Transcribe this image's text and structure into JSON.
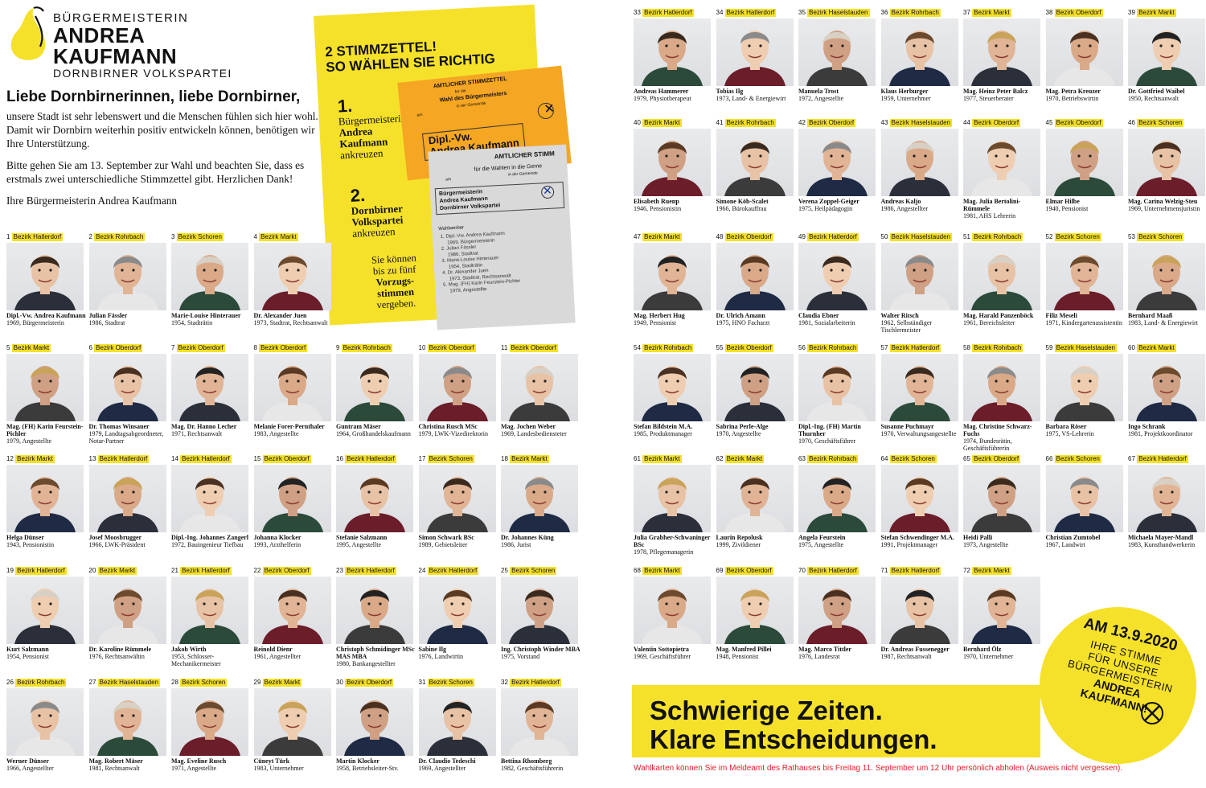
{
  "header": {
    "line1": "BÜRGERMEISTERIN",
    "line2": "ANDREA KAUFMANN",
    "line3": "DORNBIRNER VOLKSPARTEI"
  },
  "intro": {
    "heading": "Liebe Dornbirnerinnen, liebe Dornbirner,",
    "p1": "unsere Stadt ist sehr lebenswert und die Menschen fühlen sich hier wohl. Damit wir Dornbirn weiterhin positiv entwickeln können, benötigen wir Ihre Unterstützung.",
    "p2": "Bitte gehen Sie am 13. September zur Wahl und beachten Sie, dass es erstmals zwei unterschiedliche Stimmzettel gibt. Herzlichen Dank!",
    "p3": "Ihre Bürgermeisterin Andrea Kaufmann"
  },
  "ballot": {
    "title1": "2 STIMMZETTEL!",
    "title2": "SO WÄHLEN SIE RICHTIG",
    "step1_num": "1.",
    "step1_l1": "Bürgermeisterin",
    "step1_l2": "Andrea",
    "step1_l3": "Kaufmann",
    "step1_l4": "ankreuzen",
    "step2_num": "2.",
    "step2_l1": "Dornbirner",
    "step2_l2": "Volkspartei",
    "step2_l3": "ankreuzen",
    "note_l1": "Sie können",
    "note_l2": "bis zu fünf",
    "note_l3": "Vorzugs-",
    "note_l4": "stimmen",
    "note_l5": "vergeben.",
    "orange_title": "AMTLICHER STIMMZETTEL",
    "orange_sub1": "für die",
    "orange_sub2": "Wahl des Bürgermeisters",
    "orange_sub3": "in der Gemeinde",
    "orange_am": "am",
    "orange_name1": "Dipl.-Vw.",
    "orange_name2": "Andrea Kaufmann",
    "grey_title": "AMTLICHER STIMM",
    "grey_sub": "für die Wahlen in die Geme",
    "grey_sub2": "in der Gemeinde",
    "grey_am": "am",
    "grey_party1": "Bürgermeisterin",
    "grey_party2": "Andrea Kaufmann",
    "grey_party3": "Dornbirner Volkspartei",
    "grey_wb": "Wahlwerber",
    "grey_list": [
      "1. Dipl.-Vw. Andrea Kaufmann",
      "1969, Bürgermeisterin",
      "2. Julian Fässler",
      "1986, Stadtrat",
      "3. Marie-Louise Hinterauer",
      "1954, Stadträtin",
      "4. Dr. Alexander Juen",
      "1973, Stadtrat, Rechtsanwalt",
      "5. Mag. (FH) Karin Feurstein-Pichler",
      "1979, Angestellte"
    ]
  },
  "candidates": [
    {
      "num": "1",
      "district": "Bezirk Hatlerdorf",
      "name": "Dipl.-Vw. Andrea Kaufmann",
      "info": "1969, Bürgermeisterin"
    },
    {
      "num": "2",
      "district": "Bezirk Rohrbach",
      "name": "Julian Fässler",
      "info": "1986, Stadtrat"
    },
    {
      "num": "3",
      "district": "Bezirk Schoren",
      "name": "Marie-Louise Hinterauer",
      "info": "1954, Stadträtin"
    },
    {
      "num": "4",
      "district": "Bezirk Markt",
      "name": "Dr. Alexander Juen",
      "info": "1973, Stadtrat, Rechtsanwalt"
    },
    {
      "num": "5",
      "district": "Bezirk Markt",
      "name": "Mag. (FH) Karin Feurstein-Pichler",
      "info": "1979, Angestellte"
    },
    {
      "num": "6",
      "district": "Bezirk Oberdorf",
      "name": "Dr. Thomas Winsauer",
      "info": "1979, Landtagsabgeordneter, Notar-Partner"
    },
    {
      "num": "7",
      "district": "Bezirk Oberdorf",
      "name": "Mag. Dr. Hanno Lecher",
      "info": "1971, Rechtsanwalt"
    },
    {
      "num": "8",
      "district": "Bezirk Oberdorf",
      "name": "Melanie Forer-Pernthaler",
      "info": "1983, Angestellte"
    },
    {
      "num": "9",
      "district": "Bezirk Rohrbach",
      "name": "Guntram Mäser",
      "info": "1964, Großhandelskaufmann"
    },
    {
      "num": "10",
      "district": "Bezirk Oberdorf",
      "name": "Christina Rusch MSc",
      "info": "1979, LWK-Vizedirektorin"
    },
    {
      "num": "11",
      "district": "Bezirk Oberdorf",
      "name": "Mag. Jochen Weber",
      "info": "1969, Landesbediensteter"
    },
    {
      "num": "12",
      "district": "Bezirk Markt",
      "name": "Helga Dünser",
      "info": "1943, Pensionistin"
    },
    {
      "num": "13",
      "district": "Bezirk Hatlerdorf",
      "name": "Josef Moosbrugger",
      "info": "1966, LWK-Präsident"
    },
    {
      "num": "14",
      "district": "Bezirk Hatlerdorf",
      "name": "Dipl.-Ing. Johannes Zangerl",
      "info": "1972, Bauingenieur Tiefbau"
    },
    {
      "num": "15",
      "district": "Bezirk Oberdorf",
      "name": "Johanna Klocker",
      "info": "1993, Arzthelferin"
    },
    {
      "num": "16",
      "district": "Bezirk Hatlerdorf",
      "name": "Stefanie Salzmann",
      "info": "1995, Angestellte"
    },
    {
      "num": "17",
      "district": "Bezirk Schoren",
      "name": "Simon Schwark BSc",
      "info": "1989, Gebietsleiter"
    },
    {
      "num": "18",
      "district": "Bezirk Markt",
      "name": "Dr. Johannes Küng",
      "info": "1986, Jurist"
    },
    {
      "num": "19",
      "district": "Bezirk Hatlerdorf",
      "name": "Kurt Salzmann",
      "info": "1954, Pensionist"
    },
    {
      "num": "20",
      "district": "Bezirk Markt",
      "name": "Dr. Karoline Rümmele",
      "info": "1976, Rechtsanwältin"
    },
    {
      "num": "21",
      "district": "Bezirk Hatlerdorf",
      "name": "Jakob Wirth",
      "info": "1953, Schlosser-Mechanikermeister"
    },
    {
      "num": "22",
      "district": "Bezirk Oberdorf",
      "name": "Reinold Dienr",
      "info": "1961, Angestellter"
    },
    {
      "num": "23",
      "district": "Bezirk Hatlerdorf",
      "name": "Christoph Schmidinger MSc MAS MBA",
      "info": "1980, Bankangestellter"
    },
    {
      "num": "24",
      "district": "Bezirk Hatlerdorf",
      "name": "Sabine Ilg",
      "info": "1976, Landwirtin"
    },
    {
      "num": "25",
      "district": "Bezirk Schoren",
      "name": "Ing. Christoph Winder MBA",
      "info": "1975, Vorstand"
    },
    {
      "num": "26",
      "district": "Bezirk Rohrbach",
      "name": "Werner Dünser",
      "info": "1966, Angestellter"
    },
    {
      "num": "27",
      "district": "Bezirk Haselstauden",
      "name": "Mag. Robert Mäser",
      "info": "1981, Rechtsanwalt"
    },
    {
      "num": "28",
      "district": "Bezirk Schoren",
      "name": "Mag. Eveline Rusch",
      "info": "1971, Angestellte"
    },
    {
      "num": "29",
      "district": "Bezirk Markt",
      "name": "Cüneyt Türk",
      "info": "1983, Unternehmer"
    },
    {
      "num": "30",
      "district": "Bezirk Oberdorf",
      "name": "Martin Klocker",
      "info": "1958, Betriebsleiter-Stv."
    },
    {
      "num": "31",
      "district": "Bezirk Schoren",
      "name": "Dr. Claudio Tedeschi",
      "info": "1969, Angestellter"
    },
    {
      "num": "32",
      "district": "Bezirk Hatlerdorf",
      "name": "Bettina Rhomberg",
      "info": "1982, Geschäftsführerin"
    },
    {
      "num": "33",
      "district": "Bezirk Hatlerdorf",
      "name": "Andreas Hammerer",
      "info": "1979, Physiotherapeut"
    },
    {
      "num": "34",
      "district": "Bezirk Hatlerdorf",
      "name": "Tobias Ilg",
      "info": "1973, Land- & Energiewirt"
    },
    {
      "num": "35",
      "district": "Bezirk Haselstauden",
      "name": "Manuela Trost",
      "info": "1972, Angestellte"
    },
    {
      "num": "36",
      "district": "Bezirk Rohrbach",
      "name": "Klaus Herburger",
      "info": "1959, Unternehmer"
    },
    {
      "num": "37",
      "district": "Bezirk Markt",
      "name": "Mag. Heinz Peter Balcz",
      "info": "1977, Steuerberater"
    },
    {
      "num": "38",
      "district": "Bezirk Oberdorf",
      "name": "Mag. Petra Kreuzer",
      "info": "1970, Betriebswirtin"
    },
    {
      "num": "39",
      "district": "Bezirk Markt",
      "name": "Dr. Gottfried Waibel",
      "info": "1950, Rechtsanwalt"
    },
    {
      "num": "40",
      "district": "Bezirk Markt",
      "name": "Elisabeth Rueпp",
      "info": "1946, Pensionistin"
    },
    {
      "num": "41",
      "district": "Bezirk Rohrbach",
      "name": "Simone Köb-Scalet",
      "info": "1966, Bürokauffrau"
    },
    {
      "num": "42",
      "district": "Bezirk Oberdorf",
      "name": "Verena Zoppel-Geiger",
      "info": "1975, Heilpädagogin"
    },
    {
      "num": "43",
      "district": "Bezirk Haselstauden",
      "name": "Andreas Kaljo",
      "info": "1986, Angestellter"
    },
    {
      "num": "44",
      "district": "Bezirk Oberdorf",
      "name": "Mag. Julia Bertolini-Rümmele",
      "info": "1981, AHS Lehrerin"
    },
    {
      "num": "45",
      "district": "Bezirk Oberdorf",
      "name": "Elmar Hilbe",
      "info": "1940, Pensionist"
    },
    {
      "num": "46",
      "district": "Bezirk Schoren",
      "name": "Mag. Carina Welzig-Steu",
      "info": "1969, Unternehmensjuristin"
    },
    {
      "num": "47",
      "district": "Bezirk Markt",
      "name": "Mag. Herbert Hug",
      "info": "1949, Pensionist"
    },
    {
      "num": "48",
      "district": "Bezirk Oberdorf",
      "name": "Dr. Ulrich Amann",
      "info": "1975, HNO Facharzt"
    },
    {
      "num": "49",
      "district": "Bezirk Hatlerdorf",
      "name": "Claudia Ebner",
      "info": "1981, Sozialarbeiterin"
    },
    {
      "num": "50",
      "district": "Bezirk Haselstauden",
      "name": "Walter Ritsch",
      "info": "1962, Selbständiger Tischlermeister"
    },
    {
      "num": "51",
      "district": "Bezirk Rohrbach",
      "name": "Mag. Harald Panzenböck",
      "info": "1961, Bereichsleiter"
    },
    {
      "num": "52",
      "district": "Bezirk Schoren",
      "name": "Filiz Meseli",
      "info": "1971, Kindergartenassistentin"
    },
    {
      "num": "53",
      "district": "Bezirk Schoren",
      "name": "Bernhard Maaß",
      "info": "1983, Land- & Energiewirt"
    },
    {
      "num": "54",
      "district": "Bezirk Rohrbach",
      "name": "Stefan Bildstein M.A.",
      "info": "1985, Produktmanager"
    },
    {
      "num": "55",
      "district": "Bezirk Oberdorf",
      "name": "Sabrina Perle-Alge",
      "info": "1970, Angestellte"
    },
    {
      "num": "56",
      "district": "Bezirk Rohrbach",
      "name": "Dipl.-Ing. (FH) Martin Thurnher",
      "info": "1970, Geschäftsführer"
    },
    {
      "num": "57",
      "district": "Bezirk Hatlerdorf",
      "name": "Susanne Puchmayr",
      "info": "1970, Verwaltungsangestellte"
    },
    {
      "num": "58",
      "district": "Bezirk Rohrbach",
      "name": "Mag. Christine Schwarz-Fuchs",
      "info": "1974, Bundesrätin, Geschäftsführerin"
    },
    {
      "num": "59",
      "district": "Bezirk Haselstauden",
      "name": "Barbara Röser",
      "info": "1975, VS-Lehrerin"
    },
    {
      "num": "60",
      "district": "Bezirk Markt",
      "name": "Ingo Schrank",
      "info": "1981, Projektkoordinator"
    },
    {
      "num": "61",
      "district": "Bezirk Markt",
      "name": "Julia Grabher-Schwaninger BSc",
      "info": "1978, Pflegemanagerin"
    },
    {
      "num": "62",
      "district": "Bezirk Markt",
      "name": "Laurin Repolusk",
      "info": "1999, Zivildiener"
    },
    {
      "num": "63",
      "district": "Bezirk Rohrbach",
      "name": "Angela Feurstein",
      "info": "1975, Angestellte"
    },
    {
      "num": "64",
      "district": "Bezirk Schoren",
      "name": "Stefan Schwendinger M.A.",
      "info": "1991, Projektmanager"
    },
    {
      "num": "65",
      "district": "Bezirk Oberdorf",
      "name": "Heidi Palli",
      "info": "1973, Angestellte"
    },
    {
      "num": "66",
      "district": "Bezirk Schoren",
      "name": "Christian Zumtobel",
      "info": "1967, Landwirt"
    },
    {
      "num": "67",
      "district": "Bezirk Hatlerdorf",
      "name": "Michaela Mayer-Mandl",
      "info": "1983, Kunsthandwerkerin"
    },
    {
      "num": "68",
      "district": "Bezirk Markt",
      "name": "Valentin Sottopietra",
      "info": "1969, Geschäftsführer"
    },
    {
      "num": "69",
      "district": "Bezirk Oberdorf",
      "name": "Mag. Manfred Pillei",
      "info": "1948, Pensionist"
    },
    {
      "num": "70",
      "district": "Bezirk Hatlerdorf",
      "name": "Mag. Marco Tittler",
      "info": "1976, Landesrat"
    },
    {
      "num": "71",
      "district": "Bezirk Hatlerdorf",
      "name": "Dr. Andreas Fussenegger",
      "info": "1987, Rechtsanwalt"
    },
    {
      "num": "72",
      "district": "Bezirk Markt",
      "name": "Bernhard Ölz",
      "info": "1970, Unternehmer"
    }
  ],
  "slogan": {
    "line1": "Schwierige Zeiten.",
    "line2": "Klare Entscheidungen."
  },
  "circle": {
    "date": "AM 13.9.2020",
    "l1": "IHRE STIMME",
    "l2": "FÜR UNSERE",
    "l3": "BÜRGERMEISTERIN",
    "name1": "ANDREA",
    "name2": "KAUFMANN!"
  },
  "footer": "Wahlkarten können Sie im Meldeamt des Rathauses bis Freitag 11. September um 12 Uhr persönlich abholen (Ausweis nicht vergessen).",
  "colors": {
    "yellow": "#f6e12a",
    "orange": "#f5a623",
    "red": "#e3202a"
  }
}
